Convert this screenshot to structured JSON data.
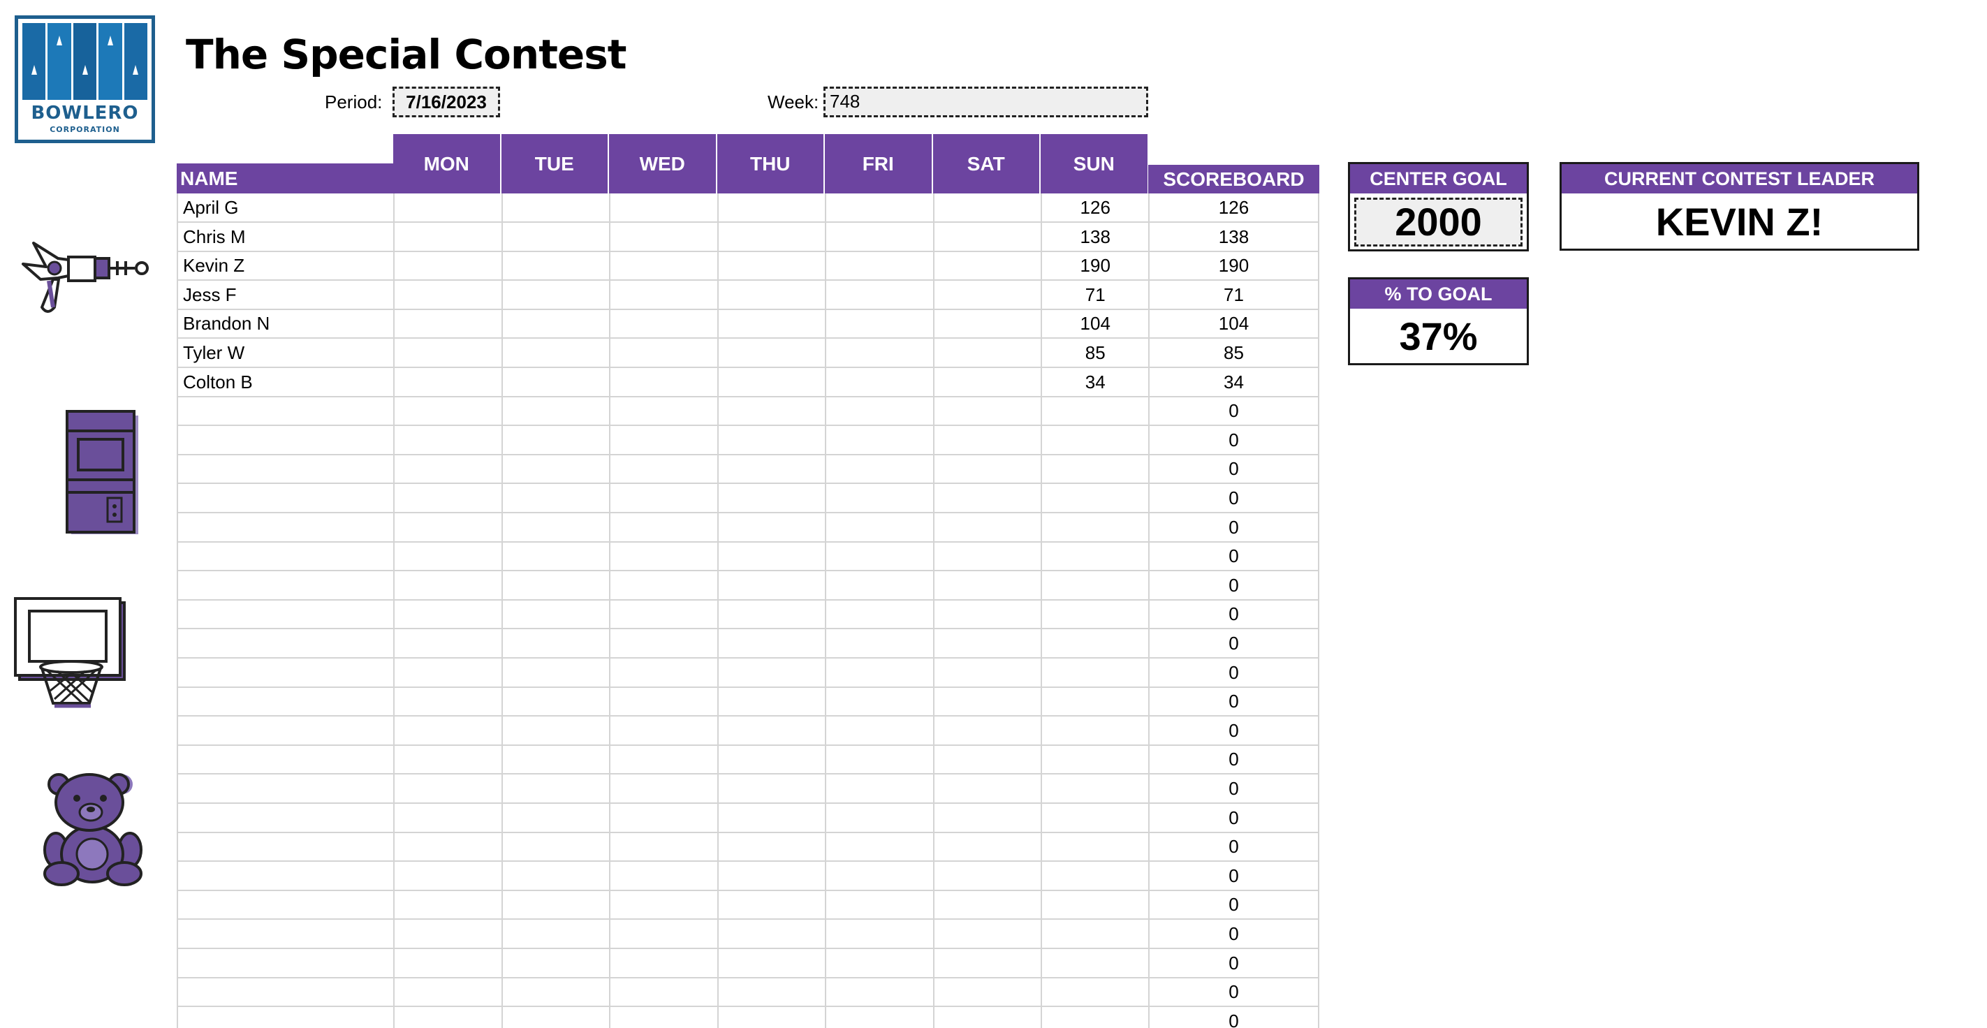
{
  "logo": {
    "name": "BOWLERO",
    "subtitle": "CORPORATION"
  },
  "title": "The Special Contest",
  "period": {
    "label": "Period:",
    "value": "7/16/2023"
  },
  "week": {
    "label": "Week:",
    "value": "748"
  },
  "columns": {
    "name": "NAME",
    "days": [
      "MON",
      "TUE",
      "WED",
      "THU",
      "FRI",
      "SAT",
      "SUN"
    ],
    "scoreboard": "SCOREBOARD"
  },
  "rows": [
    {
      "name": "April G",
      "sun": "126",
      "scoreboard": "126"
    },
    {
      "name": "Chris M",
      "sun": "138",
      "scoreboard": "138"
    },
    {
      "name": "Kevin Z",
      "sun": "190",
      "scoreboard": "190"
    },
    {
      "name": "Jess F",
      "sun": "71",
      "scoreboard": "71"
    },
    {
      "name": "Brandon N",
      "sun": "104",
      "scoreboard": "104"
    },
    {
      "name": "Tyler W",
      "sun": "85",
      "scoreboard": "85"
    },
    {
      "name": "Colton B",
      "sun": "34",
      "scoreboard": "34"
    },
    {
      "name": "",
      "sun": "",
      "scoreboard": "0"
    },
    {
      "name": "",
      "sun": "",
      "scoreboard": "0"
    },
    {
      "name": "",
      "sun": "",
      "scoreboard": "0"
    },
    {
      "name": "",
      "sun": "",
      "scoreboard": "0"
    },
    {
      "name": "",
      "sun": "",
      "scoreboard": "0"
    },
    {
      "name": "",
      "sun": "",
      "scoreboard": "0"
    },
    {
      "name": "",
      "sun": "",
      "scoreboard": "0"
    },
    {
      "name": "",
      "sun": "",
      "scoreboard": "0"
    },
    {
      "name": "",
      "sun": "",
      "scoreboard": "0"
    },
    {
      "name": "",
      "sun": "",
      "scoreboard": "0"
    },
    {
      "name": "",
      "sun": "",
      "scoreboard": "0"
    },
    {
      "name": "",
      "sun": "",
      "scoreboard": "0"
    },
    {
      "name": "",
      "sun": "",
      "scoreboard": "0"
    },
    {
      "name": "",
      "sun": "",
      "scoreboard": "0"
    },
    {
      "name": "",
      "sun": "",
      "scoreboard": "0"
    },
    {
      "name": "",
      "sun": "",
      "scoreboard": "0"
    },
    {
      "name": "",
      "sun": "",
      "scoreboard": "0"
    },
    {
      "name": "",
      "sun": "",
      "scoreboard": "0"
    },
    {
      "name": "",
      "sun": "",
      "scoreboard": "0"
    },
    {
      "name": "",
      "sun": "",
      "scoreboard": "0"
    },
    {
      "name": "",
      "sun": "",
      "scoreboard": "0"
    },
    {
      "name": "",
      "sun": "",
      "scoreboard": "0"
    }
  ],
  "center_goal": {
    "label": "CENTER GOAL",
    "value": "2000"
  },
  "percent_to_goal": {
    "label": "% TO GOAL",
    "value": "37%"
  },
  "contest_leader": {
    "label": "CURRENT CONTEST LEADER",
    "value": "KEVIN Z!"
  },
  "illustrations": [
    "ray-gun-icon",
    "arcade-cabinet-icon",
    "basketball-hoop-icon",
    "teddy-bear-icon"
  ],
  "colors": {
    "header_purple": "#6c44a0",
    "logo_blue": "#1e5f8e",
    "gridline": "#d4d4d4",
    "illustration_purple": "#6a4f9a"
  }
}
